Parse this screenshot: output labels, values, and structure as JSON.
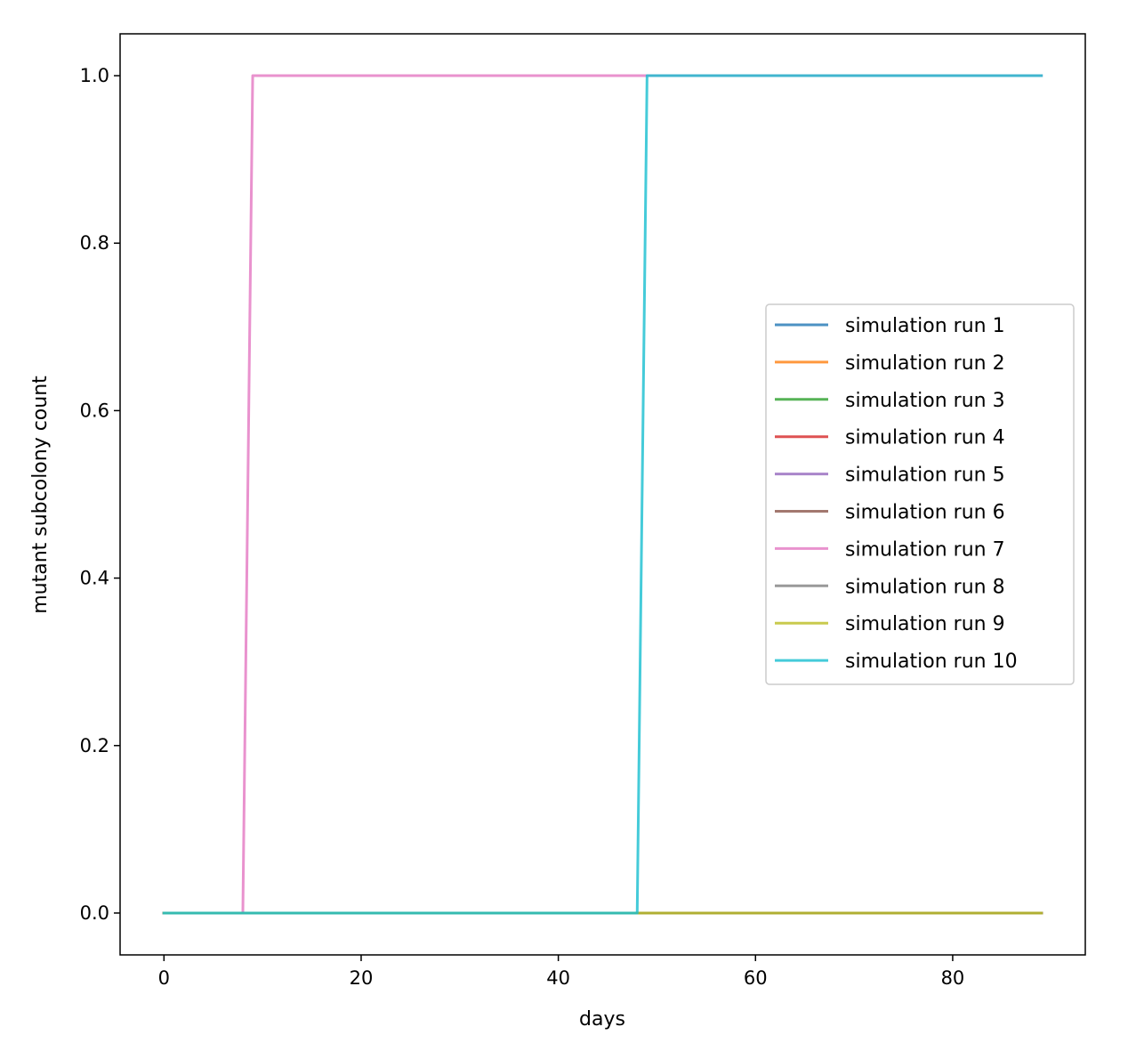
{
  "chart_data": {
    "type": "line",
    "title": "",
    "xlabel": "days",
    "ylabel": "mutant subcolony count",
    "xlim": [
      -4.45,
      93.45
    ],
    "ylim": [
      -0.05,
      1.05
    ],
    "xticks": [
      0,
      20,
      40,
      60,
      80
    ],
    "xtick_labels": [
      "0",
      "20",
      "40",
      "60",
      "80"
    ],
    "yticks": [
      0.0,
      0.2,
      0.4,
      0.6,
      0.8,
      1.0
    ],
    "ytick_labels": [
      "0.0",
      "0.2",
      "0.4",
      "0.6",
      "0.8",
      "1.0"
    ],
    "grid": false,
    "legend_position": "center-right",
    "series": [
      {
        "name": "simulation run 1",
        "color": "#1f77b4",
        "x": [
          0,
          89
        ],
        "y": [
          0,
          0
        ]
      },
      {
        "name": "simulation run 2",
        "color": "#ff7f0e",
        "x": [
          0,
          89
        ],
        "y": [
          0,
          0
        ]
      },
      {
        "name": "simulation run 3",
        "color": "#2ca02c",
        "x": [
          0,
          89
        ],
        "y": [
          0,
          0
        ]
      },
      {
        "name": "simulation run 4",
        "color": "#d62728",
        "x": [
          0,
          89
        ],
        "y": [
          0,
          0
        ]
      },
      {
        "name": "simulation run 5",
        "color": "#9467bd",
        "x": [
          0,
          89
        ],
        "y": [
          0,
          0
        ]
      },
      {
        "name": "simulation run 6",
        "color": "#8c564b",
        "x": [
          0,
          89
        ],
        "y": [
          0,
          0
        ]
      },
      {
        "name": "simulation run 7",
        "color": "#e377c2",
        "x": [
          0,
          8,
          9,
          89
        ],
        "y": [
          0,
          0,
          1,
          1
        ]
      },
      {
        "name": "simulation run 8",
        "color": "#7f7f7f",
        "x": [
          0,
          89
        ],
        "y": [
          0,
          0
        ]
      },
      {
        "name": "simulation run 9",
        "color": "#bcbd22",
        "x": [
          0,
          89
        ],
        "y": [
          0,
          0
        ]
      },
      {
        "name": "simulation run 10",
        "color": "#17becf",
        "x": [
          0,
          48,
          49,
          89
        ],
        "y": [
          0,
          0,
          1,
          1
        ]
      }
    ]
  }
}
